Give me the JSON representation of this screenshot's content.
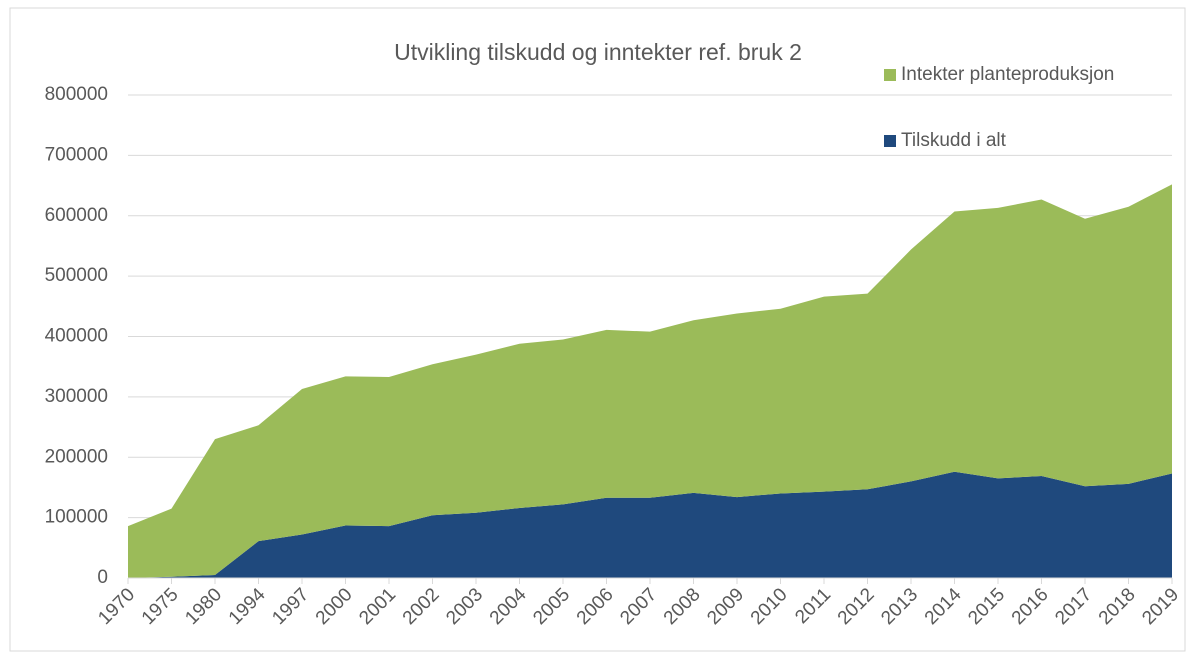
{
  "chart_data": {
    "type": "stacked_area",
    "title": "Utvikling tilskudd og inntekter ref. bruk 2",
    "categories": [
      "1970",
      "1975",
      "1980",
      "1994",
      "1997",
      "2000",
      "2001",
      "2002",
      "2003",
      "2004",
      "2005",
      "2006",
      "2007",
      "2008",
      "2009",
      "2010",
      "2011",
      "2012",
      "2013",
      "2014",
      "2015",
      "2016",
      "2017",
      "2018",
      "2019"
    ],
    "series": [
      {
        "name": "Tilskudd i alt",
        "color": "#1f497d",
        "values": [
          0,
          2000,
          5000,
          61000,
          72000,
          87000,
          86000,
          104000,
          108000,
          116000,
          122000,
          133000,
          133000,
          141000,
          134000,
          140000,
          143000,
          147000,
          160000,
          176000,
          165000,
          169000,
          152000,
          156000,
          173000
        ]
      },
      {
        "name": "Intekter planteproduksjon",
        "color": "#9bbb59",
        "values": [
          86000,
          113000,
          225000,
          192000,
          241000,
          247000,
          247000,
          250000,
          262000,
          272000,
          273000,
          278000,
          275000,
          286000,
          304000,
          306000,
          323000,
          324000,
          384000,
          431000,
          448000,
          458000,
          443000,
          459000,
          479000
        ]
      }
    ],
    "ylim": [
      0,
      800000
    ],
    "yticks": [
      0,
      100000,
      200000,
      300000,
      400000,
      500000,
      600000,
      700000,
      800000
    ],
    "grid": true
  }
}
